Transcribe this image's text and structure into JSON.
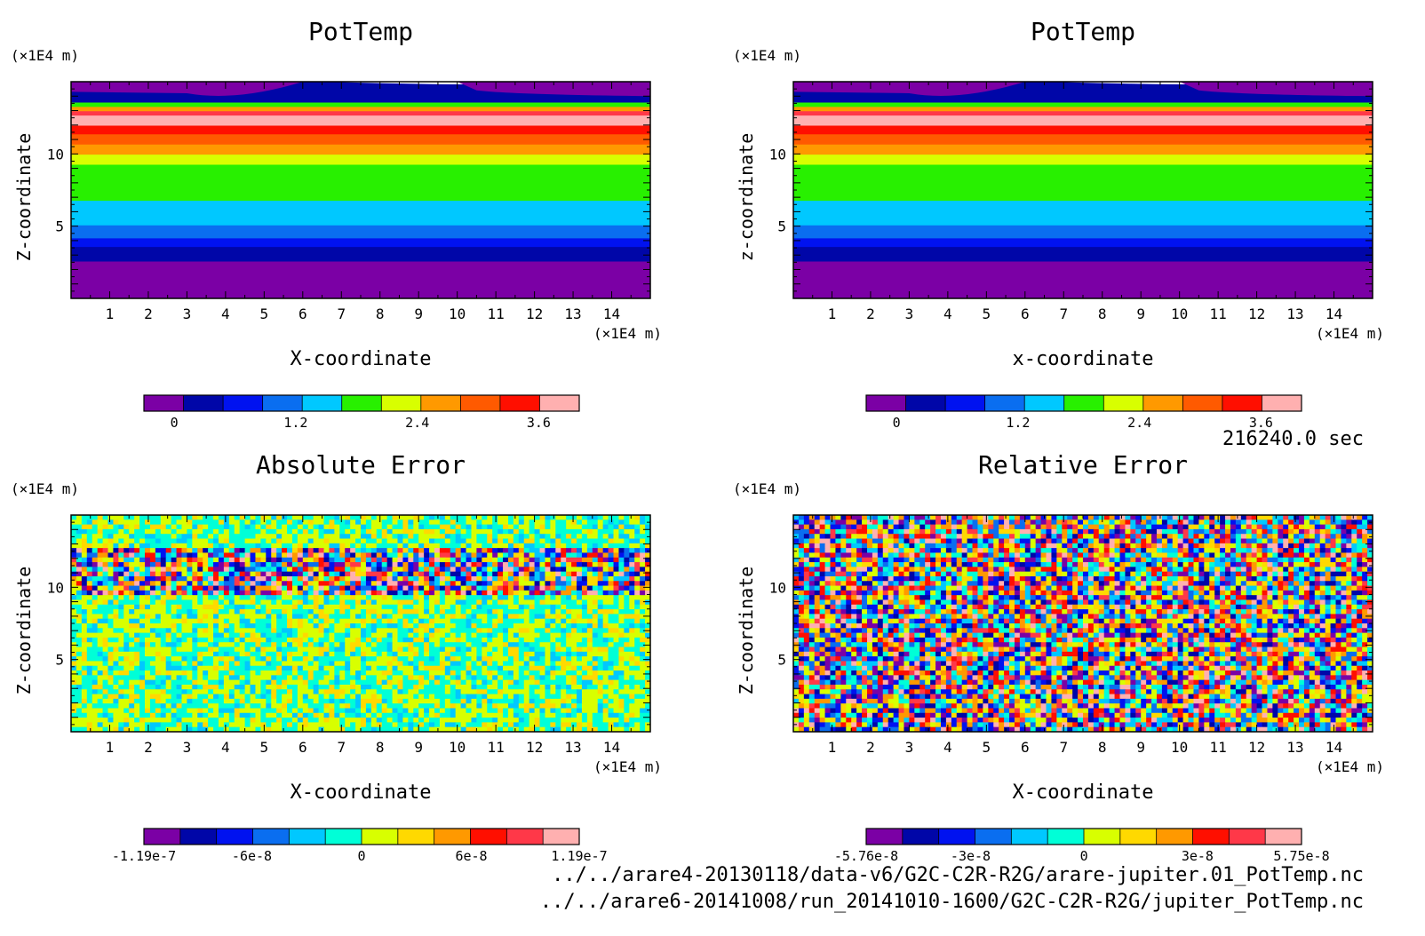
{
  "time_label": "216240.0 sec",
  "file_paths": [
    "../../arare4-20130118/data-v6/G2C-C2R-R2G/arare-jupiter.01_PotTemp.nc",
    "../../arare6-20141008/run_20141010-1600/G2C-C2R-R2G/jupiter_PotTemp.nc"
  ],
  "colors": {
    "palette": [
      "#7b00a5",
      "#0006a8",
      "#0012f0",
      "#0a6ef0",
      "#00c8ff",
      "#00ffd7",
      "#28f000",
      "#d8ff00",
      "#ffd900",
      "#ff9900",
      "#ff5a00",
      "#ff0f00",
      "#ff3848",
      "#ffb0b0"
    ]
  },
  "chart_data": [
    {
      "id": "pottemp-1",
      "type": "heatmap",
      "title": "PotTemp",
      "xlabel": "X-coordinate",
      "ylabel": "Z-coordinate",
      "x_unit": "(×1E4 m)",
      "y_unit": "(×1E4 m)",
      "xlim": [
        0,
        15
      ],
      "ylim": [
        0,
        15
      ],
      "xticks": [
        1,
        2,
        3,
        4,
        5,
        6,
        7,
        8,
        9,
        10,
        11,
        12,
        13,
        14
      ],
      "yticks": [
        5,
        10
      ],
      "field": "layered",
      "colorbar": {
        "colors": [
          "#7b00a5",
          "#0006a8",
          "#0012f0",
          "#0a6ef0",
          "#00c8ff",
          "#28f000",
          "#d8ff00",
          "#ff9900",
          "#ff5a00",
          "#ff0f00",
          "#ffb0b0"
        ],
        "range": [
          -0.3,
          4.0
        ],
        "ticks": [
          {
            "value": 0,
            "label": "0"
          },
          {
            "value": 1.2,
            "label": "1.2"
          },
          {
            "value": 2.4,
            "label": "2.4"
          },
          {
            "value": 3.6,
            "label": "3.6"
          }
        ]
      },
      "layers": [
        {
          "z_from": 0.0,
          "z_to": 2.8,
          "color": "#7b00a5"
        },
        {
          "z_from": 2.8,
          "z_to": 3.8,
          "color": "#0006a8"
        },
        {
          "z_from": 3.8,
          "z_to": 4.4,
          "color": "#0012f0"
        },
        {
          "z_from": 4.4,
          "z_to": 5.3,
          "color": "#0a6ef0"
        },
        {
          "z_from": 5.3,
          "z_to": 7.0,
          "color": "#00c8ff"
        },
        {
          "z_from": 7.0,
          "z_to": 9.5,
          "color": "#28f000"
        },
        {
          "z_from": 9.5,
          "z_to": 10.2,
          "color": "#d8ff00"
        },
        {
          "z_from": 10.2,
          "z_to": 10.9,
          "color": "#ff9900"
        },
        {
          "z_from": 10.9,
          "z_to": 11.6,
          "color": "#ff5a00"
        },
        {
          "z_from": 11.6,
          "z_to": 12.2,
          "color": "#ff0f00"
        },
        {
          "z_from": 12.2,
          "z_to": 12.9,
          "color": "#ffb0b0"
        },
        {
          "z_from": 12.9,
          "z_to": 13.2,
          "color": "#ff3848"
        },
        {
          "z_from": 13.2,
          "z_to": 13.5,
          "color": "#ff9900"
        },
        {
          "z_from": 13.5,
          "z_to": 13.8,
          "color": "#28f000"
        },
        {
          "z_from": 13.8,
          "z_to": 15.0,
          "color": "#0006a8"
        }
      ]
    },
    {
      "id": "pottemp-2",
      "type": "heatmap",
      "title": "PotTemp",
      "xlabel": "x-coordinate",
      "ylabel": "z-coordinate",
      "x_unit": "(×1E4 m)",
      "y_unit": "(×1E4 m)",
      "xlim": [
        0,
        15
      ],
      "ylim": [
        0,
        15
      ],
      "xticks": [
        1,
        2,
        3,
        4,
        5,
        6,
        7,
        8,
        9,
        10,
        11,
        12,
        13,
        14
      ],
      "yticks": [
        5,
        10
      ],
      "field": "layered",
      "colorbar": {
        "colors": [
          "#7b00a5",
          "#0006a8",
          "#0012f0",
          "#0a6ef0",
          "#00c8ff",
          "#28f000",
          "#d8ff00",
          "#ff9900",
          "#ff5a00",
          "#ff0f00",
          "#ffb0b0"
        ],
        "range": [
          -0.3,
          4.0
        ],
        "ticks": [
          {
            "value": 0,
            "label": "0"
          },
          {
            "value": 1.2,
            "label": "1.2"
          },
          {
            "value": 2.4,
            "label": "2.4"
          },
          {
            "value": 3.6,
            "label": "3.6"
          }
        ]
      },
      "layers": [
        {
          "z_from": 0.0,
          "z_to": 2.8,
          "color": "#7b00a5"
        },
        {
          "z_from": 2.8,
          "z_to": 3.8,
          "color": "#0006a8"
        },
        {
          "z_from": 3.8,
          "z_to": 4.4,
          "color": "#0012f0"
        },
        {
          "z_from": 4.4,
          "z_to": 5.3,
          "color": "#0a6ef0"
        },
        {
          "z_from": 5.3,
          "z_to": 7.0,
          "color": "#00c8ff"
        },
        {
          "z_from": 7.0,
          "z_to": 9.5,
          "color": "#28f000"
        },
        {
          "z_from": 9.5,
          "z_to": 10.2,
          "color": "#d8ff00"
        },
        {
          "z_from": 10.2,
          "z_to": 10.9,
          "color": "#ff9900"
        },
        {
          "z_from": 10.9,
          "z_to": 11.6,
          "color": "#ff5a00"
        },
        {
          "z_from": 11.6,
          "z_to": 12.2,
          "color": "#ff0f00"
        },
        {
          "z_from": 12.2,
          "z_to": 12.9,
          "color": "#ffb0b0"
        },
        {
          "z_from": 12.9,
          "z_to": 13.2,
          "color": "#ff3848"
        },
        {
          "z_from": 13.2,
          "z_to": 13.5,
          "color": "#ff9900"
        },
        {
          "z_from": 13.5,
          "z_to": 13.8,
          "color": "#28f000"
        },
        {
          "z_from": 13.8,
          "z_to": 15.0,
          "color": "#0006a8"
        }
      ]
    },
    {
      "id": "absolute-error",
      "type": "heatmap",
      "title": "Absolute Error",
      "xlabel": "X-coordinate",
      "ylabel": "Z-coordinate",
      "x_unit": "(×1E4 m)",
      "y_unit": "(×1E4 m)",
      "xlim": [
        0,
        15
      ],
      "ylim": [
        0,
        15
      ],
      "xticks": [
        1,
        2,
        3,
        4,
        5,
        6,
        7,
        8,
        9,
        10,
        11,
        12,
        13,
        14
      ],
      "yticks": [
        5,
        10
      ],
      "field": "noise",
      "noise_band": [
        9.5,
        12.8
      ],
      "noise_seed": 7,
      "colorbar": {
        "colors": [
          "#7b00a5",
          "#0006a8",
          "#0012f0",
          "#0a6ef0",
          "#00c8ff",
          "#00ffd7",
          "#d8ff00",
          "#ffd900",
          "#ff9900",
          "#ff0f00",
          "#ff3848",
          "#ffb0b0"
        ],
        "range": [
          -1.19e-07,
          1.19e-07
        ],
        "ticks": [
          {
            "value": -1.19e-07,
            "label": "-1.19e-7"
          },
          {
            "value": -6e-08,
            "label": "-6e-8"
          },
          {
            "value": 0,
            "label": "0"
          },
          {
            "value": 6e-08,
            "label": "6e-8"
          },
          {
            "value": 1.19e-07,
            "label": "1.19e-7"
          }
        ]
      }
    },
    {
      "id": "relative-error",
      "type": "heatmap",
      "title": "Relative Error",
      "xlabel": "X-coordinate",
      "ylabel": "Z-coordinate",
      "x_unit": "(×1E4 m)",
      "y_unit": "(×1E4 m)",
      "xlim": [
        0,
        15
      ],
      "ylim": [
        0,
        15
      ],
      "xticks": [
        1,
        2,
        3,
        4,
        5,
        6,
        7,
        8,
        9,
        10,
        11,
        12,
        13,
        14
      ],
      "yticks": [
        5,
        10
      ],
      "field": "noise",
      "noise_band": [
        0,
        15
      ],
      "noise_seed": 13,
      "colorbar": {
        "colors": [
          "#7b00a5",
          "#0006a8",
          "#0012f0",
          "#0a6ef0",
          "#00c8ff",
          "#00ffd7",
          "#d8ff00",
          "#ffd900",
          "#ff9900",
          "#ff0f00",
          "#ff3848",
          "#ffb0b0"
        ],
        "range": [
          -5.76e-08,
          5.75e-08
        ],
        "ticks": [
          {
            "value": -5.76e-08,
            "label": "-5.76e-8"
          },
          {
            "value": -3e-08,
            "label": "-3e-8"
          },
          {
            "value": 0,
            "label": "0"
          },
          {
            "value": 3e-08,
            "label": "3e-8"
          },
          {
            "value": 5.75e-08,
            "label": "5.75e-8"
          }
        ]
      }
    }
  ]
}
